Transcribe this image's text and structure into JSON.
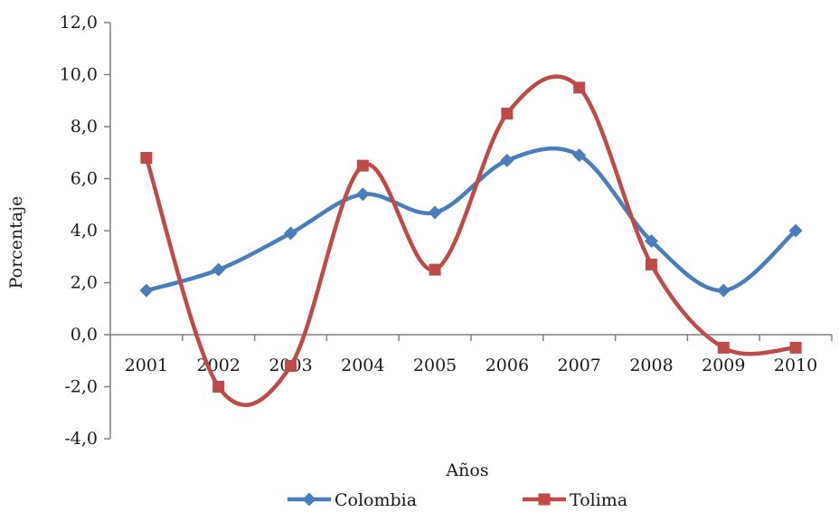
{
  "chart_data": {
    "type": "line",
    "smooth": true,
    "xlabel": "Años",
    "ylabel": "Porcentaje",
    "categories": [
      "2001",
      "2002",
      "2003",
      "2004",
      "2005",
      "2006",
      "2007",
      "2008",
      "2009",
      "2010"
    ],
    "ylim": [
      -4.0,
      12.0
    ],
    "yticks": [
      "-4,0",
      "-2,0",
      "0,0",
      "2,0",
      "4,0",
      "6,0",
      "8,0",
      "10,0",
      "12,0"
    ],
    "ytick_values": [
      -4,
      -2,
      0,
      2,
      4,
      6,
      8,
      10,
      12
    ],
    "series": [
      {
        "name": "Colombia",
        "color": "#4a7ebb",
        "marker": "diamond",
        "values": [
          1.7,
          2.5,
          3.9,
          5.4,
          4.7,
          6.7,
          6.9,
          3.6,
          1.7,
          4.0
        ]
      },
      {
        "name": "Tolima",
        "color": "#be4b48",
        "marker": "square",
        "values": [
          6.8,
          -2.0,
          -1.2,
          6.5,
          2.5,
          8.5,
          9.5,
          2.7,
          -0.5,
          -0.5
        ]
      }
    ],
    "legend_position": "bottom",
    "grid": false
  }
}
